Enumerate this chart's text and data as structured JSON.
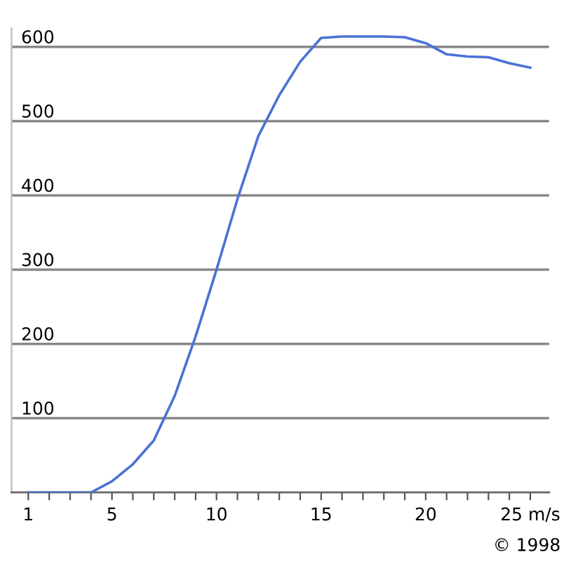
{
  "chart_data": {
    "type": "line",
    "x": [
      1,
      2,
      3,
      4,
      5,
      6,
      7,
      8,
      9,
      10,
      11,
      12,
      13,
      14,
      15,
      16,
      17,
      18,
      19,
      20,
      21,
      22,
      23,
      24,
      25
    ],
    "series": [
      {
        "color": "#4a72d6",
        "values": [
          0,
          0,
          0,
          0,
          15,
          38,
          70,
          130,
          210,
          300,
          395,
          480,
          535,
          580,
          612,
          614,
          614,
          614,
          613,
          605,
          590,
          587,
          586,
          578,
          572
        ]
      }
    ],
    "xlim": [
      0.2,
      25.9
    ],
    "ylim": [
      0,
      625
    ],
    "xticks": [
      1,
      {
        "value": 2,
        "label": null
      },
      {
        "value": 3,
        "label": null
      },
      {
        "value": 4,
        "label": null
      },
      5,
      {
        "value": 6,
        "label": null
      },
      {
        "value": 7,
        "label": null
      },
      {
        "value": 8,
        "label": null
      },
      {
        "value": 9,
        "label": null
      },
      10,
      {
        "value": 11,
        "label": null
      },
      {
        "value": 12,
        "label": null
      },
      {
        "value": 13,
        "label": null
      },
      {
        "value": 14,
        "label": null
      },
      15,
      {
        "value": 16,
        "label": null
      },
      {
        "value": 17,
        "label": null
      },
      {
        "value": 18,
        "label": null
      },
      {
        "value": 19,
        "label": null
      },
      20,
      {
        "value": 21,
        "label": null
      },
      {
        "value": 22,
        "label": null
      },
      {
        "value": 23,
        "label": null
      },
      {
        "value": 24,
        "label": null
      },
      {
        "value": 25,
        "label": "25 m/s"
      }
    ],
    "yticks": [
      100,
      200,
      300,
      400,
      500,
      600
    ],
    "grid": "y",
    "marker": "none",
    "line_style": "solid",
    "annotations": [
      "© 1998"
    ]
  }
}
